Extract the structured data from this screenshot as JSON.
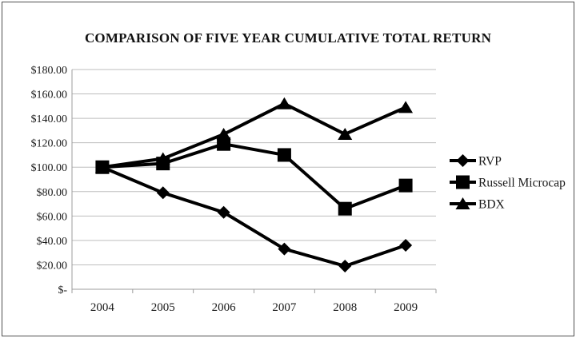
{
  "page": {
    "background_color": "#ffffff",
    "border_color": "#4f4f4f"
  },
  "chart_data": {
    "type": "line",
    "title": "COMPARISON OF FIVE YEAR CUMULATIVE TOTAL RETURN",
    "xlabel": "",
    "ylabel": "",
    "categories": [
      "2004",
      "2005",
      "2006",
      "2007",
      "2008",
      "2009"
    ],
    "series": [
      {
        "name": "RVP",
        "marker": "diamond",
        "color": "#000000",
        "values": [
          100,
          79,
          63,
          33,
          19,
          36
        ]
      },
      {
        "name": "Russell Microcap",
        "marker": "square",
        "color": "#000000",
        "values": [
          100,
          103,
          119,
          110,
          66,
          85
        ]
      },
      {
        "name": "BDX",
        "marker": "triangle",
        "color": "#000000",
        "values": [
          100,
          107,
          127,
          152,
          127,
          149
        ]
      }
    ],
    "y_ticks": [
      {
        "value": 0,
        "label": "$-"
      },
      {
        "value": 20,
        "label": "$20.00"
      },
      {
        "value": 40,
        "label": "$40.00"
      },
      {
        "value": 60,
        "label": "$60.00"
      },
      {
        "value": 80,
        "label": "$80.00"
      },
      {
        "value": 100,
        "label": "$100.00"
      },
      {
        "value": 120,
        "label": "$120.00"
      },
      {
        "value": 140,
        "label": "$140.00"
      },
      {
        "value": 160,
        "label": "$160.00"
      },
      {
        "value": 180,
        "label": "$180.00"
      }
    ],
    "ylim": [
      0,
      180
    ],
    "grid": "horizontal",
    "legend_position": "right",
    "legend": [
      "RVP",
      "Russell Microcap",
      "BDX"
    ],
    "colors": {
      "series": "#000000",
      "gridline": "#bdbdbd",
      "axis": "#9c9c9c",
      "text": "#1a1a1a"
    }
  }
}
